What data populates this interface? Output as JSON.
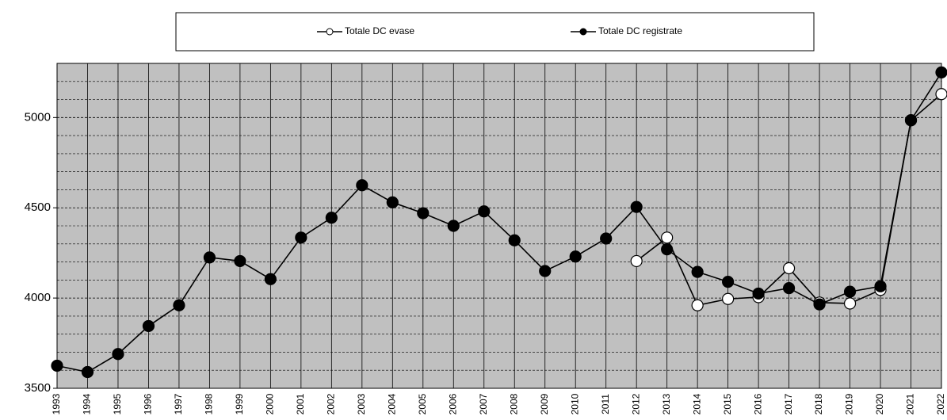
{
  "chart_data": {
    "type": "line",
    "x": [
      1993,
      1994,
      1995,
      1996,
      1997,
      1998,
      1999,
      2000,
      2001,
      2002,
      2003,
      2004,
      2005,
      2006,
      2007,
      2008,
      2009,
      2010,
      2011,
      2012,
      2013,
      2014,
      2015,
      2016,
      2017,
      2018,
      2019,
      2020,
      2021,
      2022
    ],
    "xlim": [
      1993,
      2022
    ],
    "xticks": [
      1993,
      1994,
      1995,
      1996,
      1997,
      1998,
      1999,
      2000,
      2001,
      2002,
      2003,
      2004,
      2005,
      2006,
      2007,
      2008,
      2009,
      2010,
      2011,
      2012,
      2013,
      2014,
      2015,
      2016,
      2017,
      2018,
      2019,
      2020,
      2021,
      2022
    ],
    "ylim": [
      3500,
      5300
    ],
    "yticks": [
      3500,
      4000,
      4500,
      5000
    ],
    "y_minor_ticks": [
      3600,
      3700,
      3800,
      3900,
      4100,
      4200,
      4300,
      4400,
      4600,
      4700,
      4800,
      4900,
      5100,
      5200
    ],
    "grid": true,
    "legend_position": "top",
    "series": [
      {
        "name": "Totale DC evase",
        "color": "#ffffff",
        "values": [
          null,
          null,
          null,
          null,
          null,
          null,
          null,
          null,
          null,
          null,
          null,
          null,
          null,
          null,
          null,
          null,
          null,
          null,
          null,
          4205,
          4335,
          3960,
          3995,
          4005,
          4165,
          3975,
          3970,
          4045,
          4985,
          5130
        ]
      },
      {
        "name": "Totale DC registrate",
        "color": "#000000",
        "values": [
          3625,
          3590,
          3690,
          3845,
          3960,
          4225,
          4205,
          4105,
          4335,
          4445,
          4625,
          4530,
          4470,
          4400,
          4480,
          4320,
          4150,
          4230,
          4330,
          4505,
          4270,
          4145,
          4090,
          4025,
          4055,
          3965,
          4035,
          4065,
          4985,
          5250
        ]
      }
    ]
  }
}
